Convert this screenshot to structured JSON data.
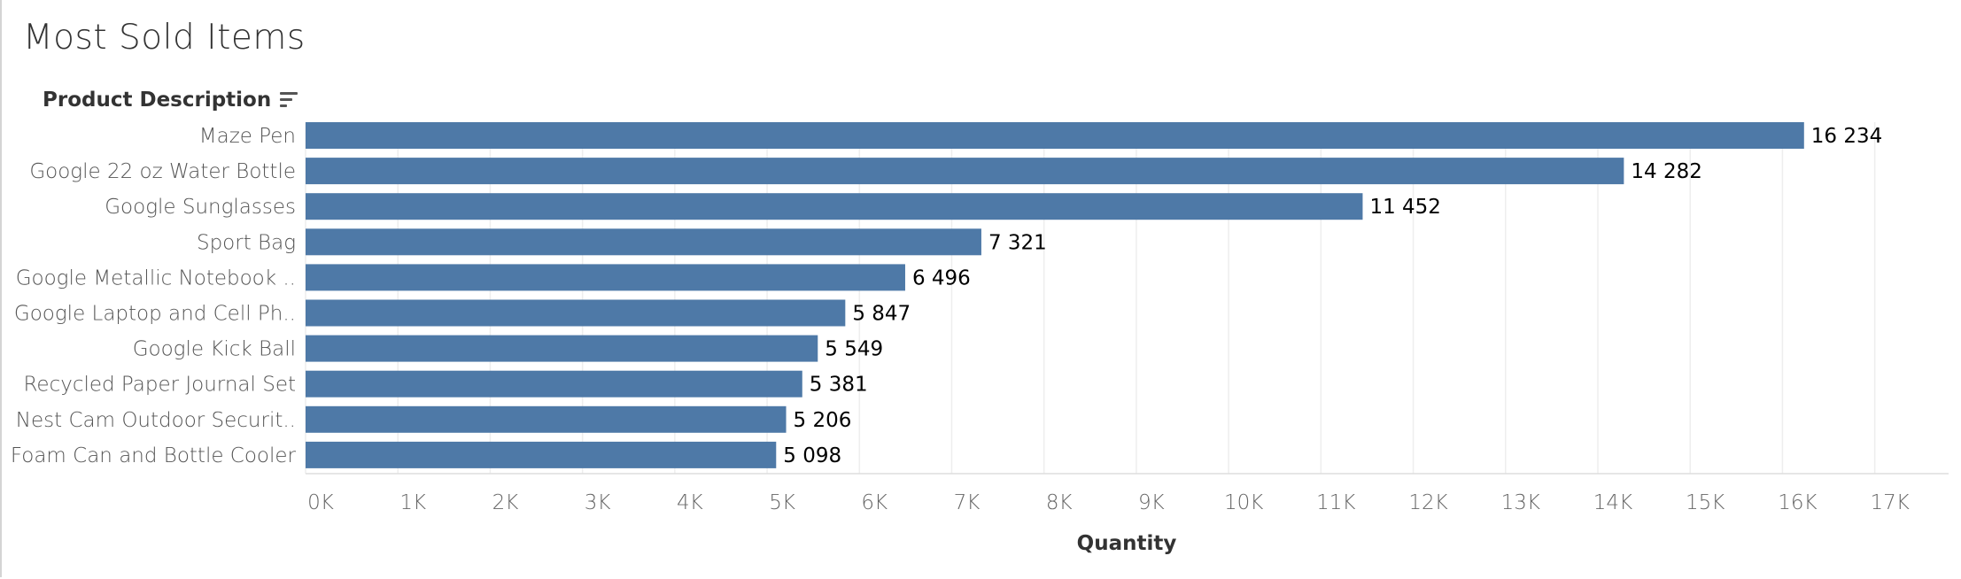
{
  "title": "Most Sold Items",
  "row_header": "Product Description",
  "icons": {
    "sort": "sort-descending-icon"
  },
  "colors": {
    "bar": "#4e79a7",
    "gridline": "#eeeeee"
  },
  "chart_data": {
    "type": "bar",
    "orientation": "horizontal",
    "categories": [
      "Maze Pen",
      "Google 22 oz Water Bottle",
      "Google Sunglasses",
      "Sport Bag",
      "Google Metallic Notebook ..",
      "Google Laptop and Cell Ph..",
      "Google Kick Ball",
      "Recycled Paper Journal Set",
      "Nest Cam Outdoor Securit..",
      "Foam Can and Bottle Cooler"
    ],
    "values": [
      16234,
      14282,
      11452,
      7321,
      6496,
      5847,
      5549,
      5381,
      5206,
      5098
    ],
    "value_labels": [
      "16 234",
      "14 282",
      "11 452",
      "7 321",
      "6 496",
      "5 847",
      "5 549",
      "5 381",
      "5 206",
      "5 098"
    ],
    "xlabel": "Quantity",
    "xlim": [
      0,
      17800
    ],
    "xticks": [
      0,
      1000,
      2000,
      3000,
      4000,
      5000,
      6000,
      7000,
      8000,
      9000,
      10000,
      11000,
      12000,
      13000,
      14000,
      15000,
      16000,
      17000
    ],
    "xtick_labels": [
      "0K",
      "1K",
      "2K",
      "3K",
      "4K",
      "5K",
      "6K",
      "7K",
      "8K",
      "9K",
      "10K",
      "11K",
      "12K",
      "13K",
      "14K",
      "15K",
      "16K",
      "17K"
    ],
    "grid": true,
    "legend": "none"
  }
}
